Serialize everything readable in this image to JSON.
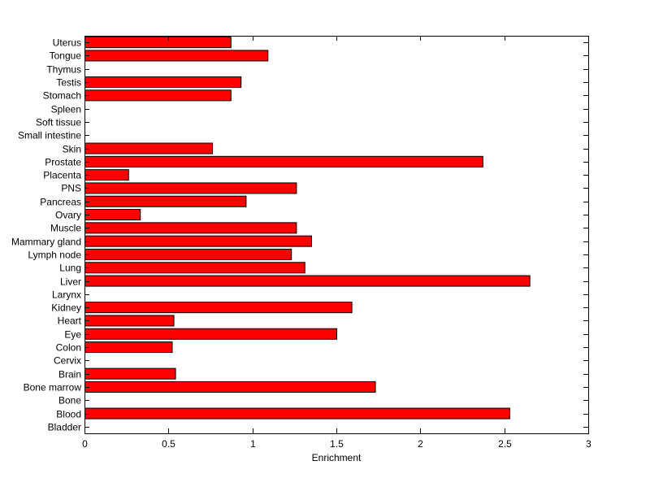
{
  "chart_data": {
    "type": "bar",
    "orientation": "horizontal",
    "title": "",
    "xlabel": "Enrichment",
    "ylabel": "",
    "xlim": [
      0,
      3
    ],
    "xticks": [
      0,
      0.5,
      1,
      1.5,
      2,
      2.5,
      3
    ],
    "grid": false,
    "bar_color": "#ff0000",
    "categories": [
      "Bladder",
      "Blood",
      "Bone",
      "Bone marrow",
      "Brain",
      "Cervix",
      "Colon",
      "Eye",
      "Heart",
      "Kidney",
      "Larynx",
      "Liver",
      "Lung",
      "Lymph node",
      "Mammary gland",
      "Muscle",
      "Ovary",
      "Pancreas",
      "PNS",
      "Placenta",
      "Prostate",
      "Skin",
      "Small intestine",
      "Soft tissue",
      "Spleen",
      "Stomach",
      "Testis",
      "Thymus",
      "Tongue",
      "Uterus"
    ],
    "values": [
      0,
      2.53,
      0,
      1.73,
      0.54,
      0,
      0.52,
      1.5,
      0.53,
      1.59,
      0,
      2.65,
      1.31,
      1.23,
      1.35,
      1.26,
      0.33,
      0.96,
      1.26,
      0.26,
      2.37,
      0.76,
      0,
      0,
      0,
      0.87,
      0.93,
      0,
      1.09,
      0.87
    ]
  }
}
